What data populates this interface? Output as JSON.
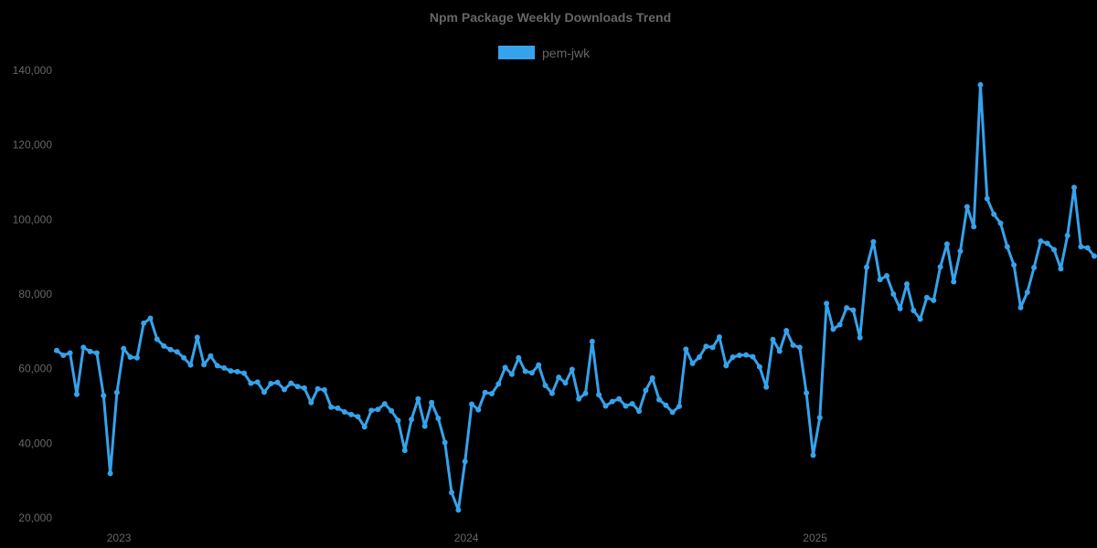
{
  "title": "Npm Package Weekly Downloads Trend",
  "legend": {
    "label": "pem-jwk",
    "swatch_color": "#36a2eb",
    "position": "top"
  },
  "colors": {
    "background": "#000000",
    "text": "#666666",
    "series_line": "#36a2eb"
  },
  "chart_data": {
    "type": "line",
    "title": "Npm Package Weekly Downloads Trend",
    "xlabel": "",
    "ylabel": "",
    "grid": false,
    "legend_position": "top",
    "point_style": "circle",
    "x_axis": {
      "unit": "week",
      "tick_labels": [
        "2023",
        "2024",
        "2025"
      ],
      "tick_week_indices": [
        9.3,
        61.2,
        113.3
      ]
    },
    "y_axis": {
      "range": [
        20000,
        140000
      ],
      "ticks": [
        20000,
        40000,
        60000,
        80000,
        100000,
        120000,
        140000
      ],
      "tick_labels": [
        "20,000",
        "40,000",
        "60,000",
        "80,000",
        "100,000",
        "120,000",
        "140,000"
      ]
    },
    "series": [
      {
        "name": "pem-jwk",
        "color": "#36a2eb",
        "values": [
          64900,
          63600,
          64200,
          53100,
          65700,
          64600,
          64200,
          52800,
          31900,
          53600,
          65400,
          63100,
          62900,
          72200,
          73500,
          67900,
          66100,
          65100,
          64500,
          62900,
          61000,
          68400,
          61100,
          63400,
          60800,
          60200,
          59400,
          59200,
          58800,
          56100,
          56400,
          53700,
          56000,
          56300,
          54400,
          56100,
          55200,
          54800,
          50900,
          54600,
          54300,
          49700,
          49400,
          48400,
          47700,
          47100,
          44400,
          48800,
          49100,
          50600,
          48700,
          46100,
          38100,
          46400,
          51900,
          44600,
          50900,
          46700,
          40200,
          26800,
          22100,
          35100,
          50500,
          49000,
          53600,
          53300,
          55900,
          60300,
          58500,
          62900,
          59300,
          58900,
          61000,
          55500,
          53400,
          57700,
          56200,
          59800,
          51900,
          53400,
          67300,
          53000,
          50000,
          51200,
          51900,
          50000,
          50600,
          48600,
          54200,
          57500,
          51700,
          50200,
          48300,
          49900,
          65200,
          61400,
          63100,
          66000,
          65700,
          68500,
          60800,
          63100,
          63600,
          63700,
          63200,
          60500,
          55100,
          67800,
          64700,
          70200,
          66300,
          65700,
          53500,
          36800,
          46900,
          77500,
          70600,
          71800,
          76300,
          75700,
          68300,
          87200,
          94000,
          83900,
          84900,
          80000,
          76100,
          82700,
          75600,
          73300,
          79100,
          78300,
          87300,
          93400,
          83300,
          91500,
          103400,
          98100,
          136100,
          105600,
          101400,
          99000,
          92700,
          87800,
          76400,
          80500,
          87100,
          94200,
          93600,
          91900,
          86800,
          95700,
          108600,
          92700,
          92400,
          90200
        ]
      }
    ]
  }
}
